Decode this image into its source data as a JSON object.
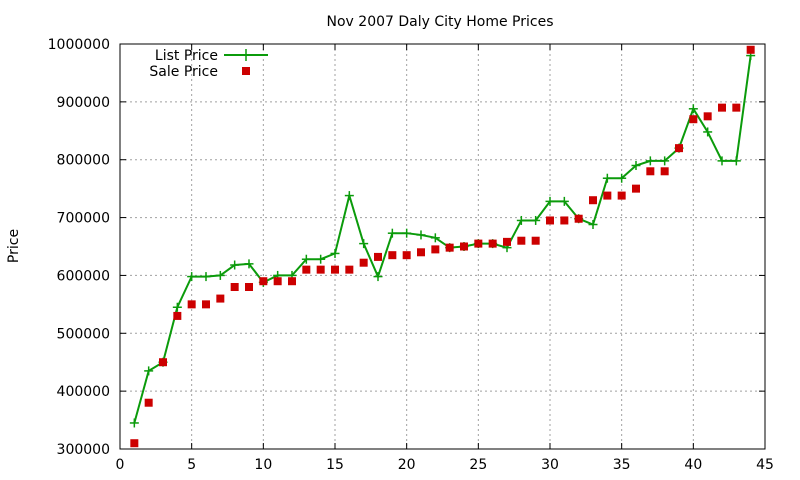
{
  "chart_data": {
    "type": "line",
    "title": "Nov 2007 Daly City Home Prices",
    "xlabel": "",
    "ylabel": "Price",
    "xlim": [
      0,
      45
    ],
    "ylim": [
      300000,
      1000000
    ],
    "x_ticks": [
      0,
      5,
      10,
      15,
      20,
      25,
      30,
      35,
      40,
      45
    ],
    "y_ticks": [
      300000,
      400000,
      500000,
      600000,
      700000,
      800000,
      900000,
      1000000
    ],
    "x_tick_labels": [
      "0",
      "5",
      "10",
      "15",
      "20",
      "25",
      "30",
      "35",
      "40",
      "45"
    ],
    "y_tick_labels": [
      "300000",
      "400000",
      "500000",
      "600000",
      "700000",
      "800000",
      "900000",
      "1000000"
    ],
    "grid": true,
    "legend_position": "top-left",
    "x": [
      1,
      2,
      3,
      4,
      5,
      6,
      7,
      8,
      9,
      10,
      11,
      12,
      13,
      14,
      15,
      16,
      17,
      18,
      19,
      20,
      21,
      22,
      23,
      24,
      25,
      26,
      27,
      28,
      29,
      30,
      31,
      32,
      33,
      34,
      35,
      36,
      37,
      38,
      39,
      40,
      41,
      42,
      43,
      44
    ],
    "series": [
      {
        "name": "List Price",
        "style": "line-plus",
        "color": "#0b9b0b",
        "values": [
          345000,
          435000,
          450000,
          545000,
          598000,
          598000,
          600000,
          618000,
          620000,
          588000,
          600000,
          600000,
          628000,
          628000,
          638000,
          738000,
          655000,
          598000,
          673000,
          673000,
          670000,
          665000,
          648000,
          650000,
          655000,
          655000,
          648000,
          695000,
          695000,
          728000,
          728000,
          698000,
          688000,
          768000,
          768000,
          790000,
          798000,
          798000,
          820000,
          888000,
          848000,
          798000,
          798000,
          980000
        ]
      },
      {
        "name": "Sale Price",
        "style": "square",
        "color": "#cc0000",
        "values": [
          310000,
          380000,
          450000,
          530000,
          550000,
          550000,
          560000,
          580000,
          580000,
          590000,
          590000,
          590000,
          610000,
          610000,
          610000,
          610000,
          622000,
          632000,
          635000,
          635000,
          640000,
          645000,
          648000,
          650000,
          655000,
          655000,
          658000,
          660000,
          660000,
          695000,
          695000,
          698000,
          730000,
          738000,
          738000,
          750000,
          780000,
          780000,
          820000,
          870000,
          875000,
          890000,
          890000,
          990000
        ]
      }
    ]
  }
}
